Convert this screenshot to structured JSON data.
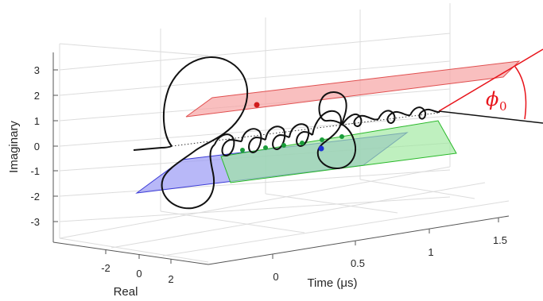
{
  "chart_data": {
    "type": "line3d",
    "title": "",
    "xlabel": "Time (μs)",
    "ylabel": "Real",
    "zlabel": "Imaginary",
    "x_ticks": [
      "0",
      "0.5",
      "1",
      "1.5"
    ],
    "y_ticks": [
      "-2",
      "0",
      "2"
    ],
    "z_ticks": [
      "3",
      "2",
      "1",
      "0",
      "-1",
      "-2",
      "-3"
    ],
    "xlim": [
      -0.3,
      1.6
    ],
    "ylim": [
      -3,
      3
    ],
    "zlim": [
      -3.5,
      3.5
    ],
    "grid": true,
    "trajectory": {
      "description_of_shape": "helix",
      "points_time_real_imag": [
        [
          -0.15,
          0,
          0
        ],
        [
          0.0,
          0,
          0
        ],
        [
          0.05,
          3,
          3
        ],
        [
          0.1,
          2,
          -2
        ],
        [
          0.2,
          0,
          0.3
        ],
        [
          0.3,
          0.5,
          0.5
        ],
        [
          0.5,
          0.5,
          0.5
        ],
        [
          0.7,
          0.5,
          0.5
        ],
        [
          0.8,
          2,
          -1.2
        ],
        [
          0.9,
          0.2,
          2
        ],
        [
          1.0,
          0.3,
          0.8
        ],
        [
          1.3,
          0.3,
          1.0
        ]
      ]
    },
    "planes": [
      {
        "color": "#f08080",
        "z_level": 2
      },
      {
        "color": "#6a6af0",
        "z_level": -1
      },
      {
        "color": "#4ddc4d",
        "z_level": 0
      }
    ],
    "markers": [
      {
        "color": "#d11c1c"
      },
      {
        "color": "#1b2fd6"
      },
      {
        "color": "#1a9c3a"
      }
    ],
    "annotation": {
      "symbol": "ϕ",
      "subscript": "0",
      "color": "#e8141b"
    }
  }
}
